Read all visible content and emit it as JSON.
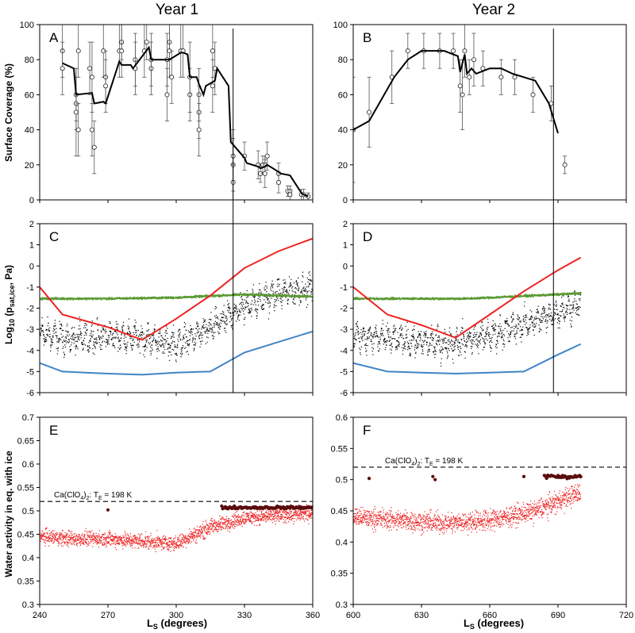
{
  "figure": {
    "col_titles": [
      "Year 1",
      "Year 2"
    ],
    "ylabels": {
      "row1": "Surface Coverage (%)",
      "row2_main": "Log",
      "row2_sub": "10",
      "row2_paren_open": " (p",
      "row2_sub2": "sat,ice",
      "row2_tail": ", Pa)",
      "row3": "Water activity in eq. with ice"
    },
    "xlabel": {
      "main": "L",
      "sub": "S",
      "tail": " (degrees)"
    }
  },
  "colors": {
    "line_black": "#000000",
    "red": "#ee2222",
    "blue": "#3f84c6",
    "green": "#5a9a32",
    "dark_red": "#5a0c0c",
    "grid_axis": "#000000"
  },
  "chart_data": [
    {
      "id": "A",
      "type": "line",
      "panel_label": "A",
      "title": "Year 1",
      "ylabel": "Surface Coverage (%)",
      "xlim": [
        240,
        360
      ],
      "ylim": [
        0,
        100
      ],
      "yticks": [
        "0",
        "20",
        "40",
        "60",
        "80",
        "100"
      ],
      "vline_x": 325,
      "series": [
        {
          "name": "Coverage model",
          "x": [
            250,
            255,
            256,
            263,
            264,
            268,
            269,
            275,
            276,
            280,
            281,
            288,
            289,
            296,
            297,
            302,
            303,
            305,
            306,
            309,
            310,
            312,
            313,
            317,
            318,
            323,
            324,
            330,
            331,
            336,
            337,
            339,
            340,
            345,
            346,
            350,
            351,
            355,
            356,
            358
          ],
          "y": [
            78,
            75,
            60,
            61,
            55,
            56,
            55,
            79,
            77,
            77,
            75,
            87,
            80,
            80,
            80,
            84,
            84,
            83,
            70,
            70,
            66,
            60,
            65,
            68,
            75,
            65,
            33,
            24,
            21,
            19,
            18,
            19,
            20,
            16,
            15,
            14,
            12,
            4,
            3,
            2
          ]
        },
        {
          "name": "Observations",
          "x": [
            250,
            250,
            256,
            256,
            256,
            257,
            257,
            262,
            263,
            263,
            264,
            268,
            269,
            269,
            275,
            276,
            276,
            282,
            282,
            286,
            287,
            289,
            289,
            296,
            296,
            297,
            297,
            298,
            302,
            303,
            306,
            306,
            310,
            310,
            310,
            316,
            316,
            317,
            325,
            325,
            325,
            330,
            336,
            337,
            338,
            339,
            339,
            340,
            345,
            345,
            349,
            350,
            350,
            355,
            356,
            358
          ],
          "y": [
            85,
            75,
            60,
            55,
            50,
            40,
            85,
            75,
            70,
            40,
            30,
            85,
            70,
            65,
            85,
            90,
            85,
            80,
            75,
            85,
            90,
            75,
            80,
            80,
            60,
            90,
            85,
            70,
            85,
            85,
            60,
            70,
            60,
            50,
            40,
            65,
            85,
            75,
            25,
            20,
            10,
            25,
            20,
            15,
            20,
            20,
            15,
            25,
            15,
            10,
            5,
            5,
            3,
            3,
            3,
            2
          ],
          "err": [
            15,
            15,
            15,
            15,
            25,
            15,
            15,
            15,
            20,
            15,
            15,
            15,
            15,
            15,
            15,
            10,
            15,
            15,
            15,
            15,
            10,
            15,
            15,
            15,
            15,
            10,
            15,
            15,
            15,
            15,
            15,
            20,
            15,
            15,
            15,
            15,
            15,
            15,
            15,
            15,
            10,
            8,
            8,
            5,
            5,
            5,
            8,
            8,
            6,
            6,
            3,
            3,
            3,
            3,
            3,
            2
          ]
        }
      ]
    },
    {
      "id": "B",
      "type": "line",
      "panel_label": "B",
      "title": "Year 2",
      "xlim": [
        600,
        720
      ],
      "ylim": [
        0,
        100
      ],
      "yticks": [
        "0",
        "20",
        "40",
        "60",
        "80",
        "100"
      ],
      "vline_x": 688,
      "series": [
        {
          "name": "Coverage model",
          "x": [
            600,
            607,
            618,
            624,
            630,
            635,
            640,
            646,
            647,
            649,
            650,
            652,
            654,
            660,
            665,
            670,
            675,
            680,
            686,
            690
          ],
          "y": [
            40,
            45,
            70,
            80,
            85,
            85,
            85,
            82,
            73,
            83,
            72,
            75,
            72,
            75,
            75,
            72,
            70,
            68,
            55,
            38
          ]
        },
        {
          "name": "Observations",
          "x": [
            600,
            607,
            617,
            624,
            631,
            638,
            644,
            647,
            648,
            649,
            651,
            653,
            657,
            665,
            671,
            679,
            687,
            693
          ],
          "y": [
            40,
            50,
            70,
            85,
            85,
            85,
            85,
            65,
            60,
            85,
            70,
            80,
            75,
            70,
            70,
            60,
            55,
            20
          ]
        },
        {
          "err": [
            30,
            20,
            15,
            10,
            10,
            10,
            10,
            15,
            20,
            15,
            10,
            15,
            10,
            10,
            10,
            10,
            10,
            5
          ]
        }
      ]
    },
    {
      "id": "C",
      "type": "line",
      "panel_label": "C",
      "ylabel": "Log10 (psat,ice, Pa)",
      "xlim": [
        240,
        360
      ],
      "ylim": [
        -6,
        2
      ],
      "yticks": [
        "-6",
        "-5",
        "-4",
        "-3",
        "-2",
        "-1",
        "0",
        "1",
        "2"
      ],
      "vline_x": 325,
      "series": [
        {
          "name": "Red curve",
          "x": [
            240,
            250,
            260,
            270,
            285,
            300,
            315,
            330,
            345,
            360
          ],
          "y": [
            -1.0,
            -2.3,
            -2.6,
            -2.9,
            -3.5,
            -2.5,
            -1.4,
            -0.1,
            0.7,
            1.3
          ]
        },
        {
          "name": "Blue curve",
          "x": [
            240,
            250,
            260,
            270,
            285,
            300,
            315,
            330,
            345,
            360
          ],
          "y": [
            -4.6,
            -5.0,
            -5.05,
            -5.1,
            -5.15,
            -5.05,
            -5.0,
            -4.1,
            -3.6,
            -3.1
          ]
        },
        {
          "name": "Green band",
          "x": [
            240,
            270,
            300,
            330,
            360
          ],
          "y": [
            -1.55,
            -1.55,
            -1.5,
            -1.35,
            -1.45
          ]
        },
        {
          "name": "Black scatter trend",
          "x": [
            240,
            255,
            270,
            283,
            300,
            315,
            330,
            345,
            360
          ],
          "y": [
            -3.2,
            -3.5,
            -3.3,
            -3.4,
            -3.7,
            -3.0,
            -1.9,
            -1.3,
            -1.0
          ]
        }
      ]
    },
    {
      "id": "D",
      "type": "line",
      "panel_label": "D",
      "xlim": [
        600,
        720
      ],
      "ylim": [
        -6,
        2
      ],
      "yticks": [
        "-6",
        "-5",
        "-4",
        "-3",
        "-2",
        "-1",
        "0",
        "1",
        "2"
      ],
      "vline_x": 688,
      "series": [
        {
          "name": "Red curve",
          "x": [
            600,
            615,
            630,
            645,
            660,
            675,
            690,
            700
          ],
          "y": [
            -1.0,
            -2.3,
            -2.8,
            -3.4,
            -2.3,
            -1.2,
            -0.2,
            0.4
          ]
        },
        {
          "name": "Blue curve",
          "x": [
            600,
            615,
            630,
            645,
            660,
            675,
            690,
            700
          ],
          "y": [
            -4.6,
            -5.0,
            -5.05,
            -5.1,
            -5.05,
            -5.0,
            -4.2,
            -3.7
          ]
        },
        {
          "name": "Green band",
          "x": [
            600,
            650,
            700
          ],
          "y": [
            -1.55,
            -1.55,
            -1.3
          ]
        },
        {
          "name": "Black scatter trend",
          "x": [
            600,
            620,
            640,
            660,
            680,
            700
          ],
          "y": [
            -3.3,
            -3.5,
            -3.7,
            -3.3,
            -2.6,
            -1.8
          ]
        }
      ]
    },
    {
      "id": "E",
      "type": "scatter",
      "panel_label": "E",
      "ylabel": "Water activity in eq. with ice",
      "xlim": [
        240,
        360
      ],
      "ylim": [
        0.3,
        0.7
      ],
      "xticks": [
        "240",
        "270",
        "300",
        "330",
        "360"
      ],
      "yticks": [
        "0.3",
        "0.35",
        "0.4",
        "0.45",
        "0.5",
        "0.55",
        "0.6",
        "0.65",
        "0.7"
      ],
      "hline_y": 0.52,
      "annotation": {
        "main": "Ca(ClO",
        "sub1": "4",
        "mid": ")",
        "sub2": "2",
        "tail": ": T",
        "sub3": "E",
        "value": " = 198 K"
      },
      "series": [
        {
          "name": "Water activity trend",
          "x": [
            240,
            255,
            270,
            285,
            300,
            315,
            330,
            345,
            360
          ],
          "y": [
            0.445,
            0.44,
            0.44,
            0.435,
            0.43,
            0.465,
            0.485,
            0.49,
            0.495
          ]
        },
        {
          "name": "Dark red points",
          "x": [
            270,
            315,
            320,
            330,
            340,
            350,
            360
          ],
          "y": [
            0.502,
            0.505,
            0.508,
            0.507,
            0.508,
            0.506,
            0.505
          ]
        }
      ]
    },
    {
      "id": "F",
      "type": "scatter",
      "panel_label": "F",
      "xlim": [
        600,
        720
      ],
      "ylim": [
        0.3,
        0.6
      ],
      "xticks": [
        "600",
        "630",
        "660",
        "690",
        "720"
      ],
      "yticks": [
        "0.3",
        "0.35",
        "0.4",
        "0.45",
        "0.5",
        "0.55",
        "0.6"
      ],
      "hline_y": 0.52,
      "annotation": {
        "main": "Ca(ClO",
        "sub1": "4",
        "mid": ")",
        "sub2": "2",
        "tail": ": T",
        "sub3": "E",
        "value": " = 198 K"
      },
      "series": [
        {
          "name": "Water activity trend",
          "x": [
            600,
            620,
            640,
            660,
            680,
            700
          ],
          "y": [
            0.44,
            0.435,
            0.43,
            0.435,
            0.45,
            0.48
          ]
        },
        {
          "name": "Dark red points",
          "x": [
            607,
            635,
            636,
            675,
            684,
            688,
            692,
            696,
            700
          ],
          "y": [
            0.502,
            0.505,
            0.5,
            0.505,
            0.505,
            0.5,
            0.507,
            0.505,
            0.508
          ]
        }
      ]
    }
  ]
}
